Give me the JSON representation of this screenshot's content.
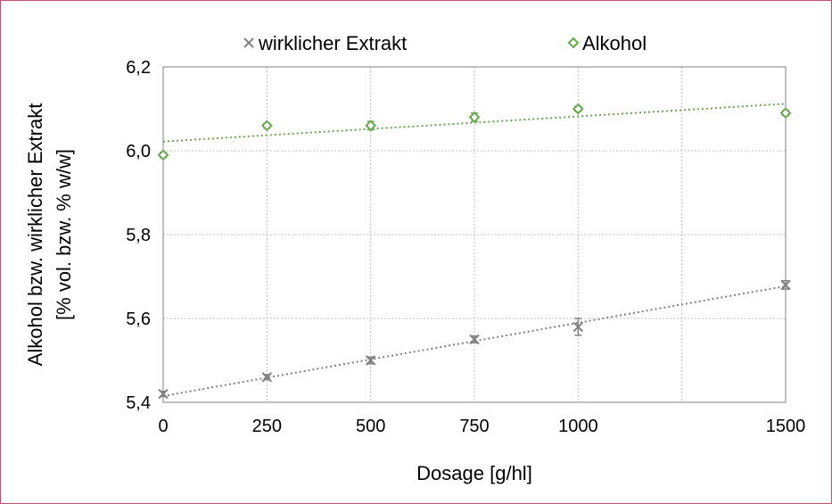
{
  "chart_data": {
    "type": "scatter",
    "xlabel": "Dosage [g/hl]",
    "ylabel_lines": [
      "Alkohol bzw. wirklicher Extrakt",
      "[% vol. bzw. % w/w]"
    ],
    "xlim": [
      0,
      1500
    ],
    "ylim": [
      5.4,
      6.2
    ],
    "x_gridlines": [
      0,
      250,
      500,
      750,
      1000,
      1250,
      1500
    ],
    "x_tick_labels": [
      {
        "value": 0,
        "label": "0"
      },
      {
        "value": 250,
        "label": "250"
      },
      {
        "value": 500,
        "label": "500"
      },
      {
        "value": 750,
        "label": "750"
      },
      {
        "value": 1000,
        "label": "1000"
      },
      {
        "value": 1500,
        "label": "1500"
      }
    ],
    "y_ticks": [
      {
        "value": 5.4,
        "label": "5,4"
      },
      {
        "value": 5.6,
        "label": "5,6"
      },
      {
        "value": 5.8,
        "label": "5,8"
      },
      {
        "value": 6.0,
        "label": "6,0"
      },
      {
        "value": 6.2,
        "label": "6,2"
      }
    ],
    "grid": true,
    "legend_position": "top",
    "series": [
      {
        "name": "wirklicher Extrakt",
        "marker": "x",
        "color": "#808080",
        "x": [
          0,
          250,
          500,
          750,
          1000,
          1500
        ],
        "y": [
          5.42,
          5.46,
          5.5,
          5.55,
          5.58,
          5.68
        ],
        "err": [
          0.006,
          0.006,
          0.008,
          0.008,
          0.02,
          0.01
        ],
        "trendline": {
          "type": "linear",
          "y_start": 5.415,
          "y_end": 5.677
        }
      },
      {
        "name": "Alkohol",
        "marker": "diamond",
        "color": "#6aa84f",
        "x": [
          0,
          250,
          500,
          750,
          1000,
          1500
        ],
        "y": [
          5.99,
          6.06,
          6.06,
          6.08,
          6.1,
          6.09
        ],
        "err": [
          0.006,
          0.006,
          0.01,
          0.01,
          0.006,
          0.006
        ],
        "trendline": {
          "type": "linear",
          "y_start": 6.022,
          "y_end": 6.112
        }
      }
    ]
  }
}
